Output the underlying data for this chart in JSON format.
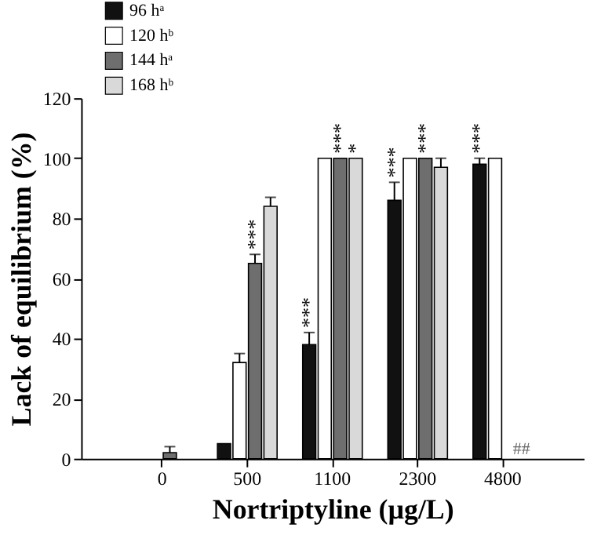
{
  "chart_data": {
    "type": "bar",
    "xlabel": "Nortriptyline  (µg/L)",
    "ylabel": "Lack of equilibrium (%)",
    "categories": [
      "0",
      "500",
      "1100",
      "2300",
      "4800"
    ],
    "series": [
      {
        "name": "96 hᵃ",
        "color": "#111111",
        "values": [
          0,
          5,
          38,
          86,
          98
        ],
        "errors": [
          null,
          null,
          [
            38,
            42
          ],
          [
            86,
            92
          ],
          [
            98,
            100
          ]
        ],
        "value_labels": [
          null,
          null,
          "***",
          "***",
          "***"
        ]
      },
      {
        "name": "120 hᵇ",
        "color": "#ffffff",
        "values": [
          0,
          32,
          100,
          100,
          100
        ],
        "errors": [
          null,
          [
            32,
            35
          ],
          null,
          null,
          null
        ],
        "value_labels": [
          null,
          null,
          null,
          null,
          null
        ]
      },
      {
        "name": "144 hᵃ",
        "color": "#6e6e6e",
        "values": [
          2,
          65,
          100,
          100,
          null
        ],
        "errors": [
          [
            2,
            4
          ],
          [
            65,
            68
          ],
          null,
          null,
          null
        ],
        "value_labels": [
          null,
          "***",
          "***",
          "***",
          null
        ]
      },
      {
        "name": "168 hᵇ",
        "color": "#d9d9d9",
        "values": [
          0,
          84,
          100,
          97,
          null
        ],
        "errors": [
          null,
          [
            84,
            87
          ],
          null,
          [
            97,
            100
          ],
          null
        ],
        "value_labels": [
          null,
          null,
          "*",
          null,
          null
        ]
      }
    ],
    "annotations": [
      {
        "text": "##",
        "x": "4800",
        "y": 0
      }
    ],
    "ylim": [
      0,
      120
    ],
    "yticks": [
      0,
      20,
      40,
      60,
      80,
      100,
      120
    ],
    "grid": false,
    "legend": "top left"
  }
}
